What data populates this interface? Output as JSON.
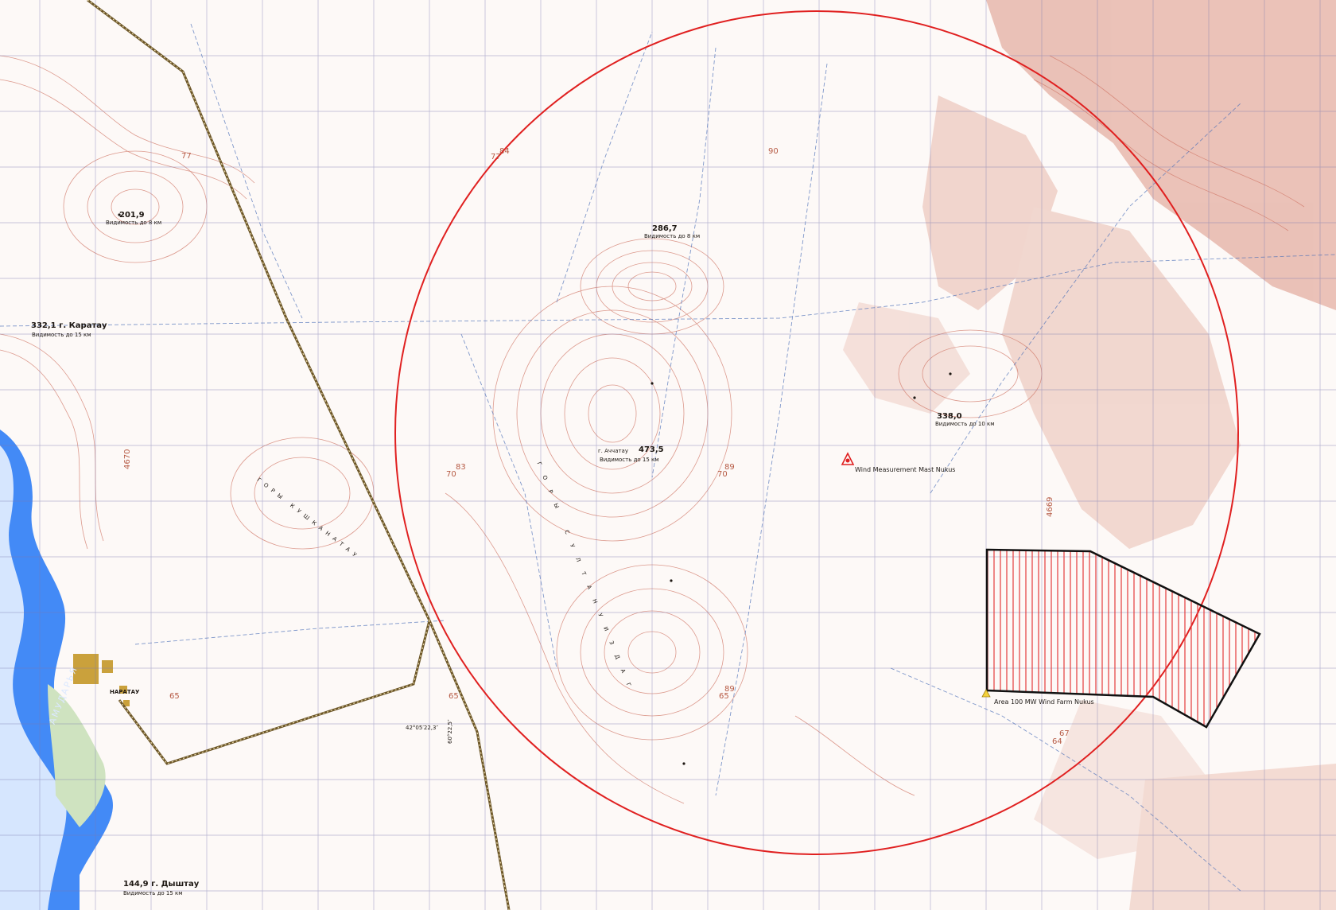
{
  "map": {
    "overlays": {
      "wind_mast_label": "Wind Measurement Mast Nukus",
      "wind_farm_label": "Area 100 MW Wind Farm Nukus"
    },
    "colors": {
      "circle": "#e02020",
      "wind_farm_outline": "#111111",
      "wind_farm_hatch": "#e33a3a",
      "river": "#2f7df5",
      "contour": "#d17a6a",
      "grid": "#7a7ab0",
      "road": "#6c5628"
    },
    "peaks": {
      "karatau": "332,1 г. Каратау",
      "karatau_vis": "Видимость до 15 км",
      "achatau_name": "г. Аччатау",
      "achatau_height": "473,5",
      "achatau_vis": "Видимость до 15 км",
      "p2869": "286,7",
      "p2869_vis": "Видимость до 8 км",
      "p2019": "201,9",
      "p2019_vis": "Видимость до 8 км",
      "p3380": "338,0",
      "p3380_vis": "Видимость до 10 км",
      "dyshtau": "144,9 г. Дыштау",
      "dyshtau_vis": "Видимость до 15 км"
    },
    "places": {
      "karatau_town": "НАРАТАУ",
      "amudarya": "АМУДАРЬЯ",
      "kushkanatau": "ГОРЫ КУШКАНАТАУ",
      "sultanuizdag": "ГОРЫ СУЛТАНУИЗДАГ"
    },
    "numbers": {
      "n4670": "4670",
      "n4669": "4669",
      "n77a": "77",
      "n77b": "77",
      "n84": "84",
      "n90": "90",
      "n70a": "70",
      "n83": "83",
      "n70b": "70",
      "n89a": "89",
      "n65a": "65",
      "n65b": "65",
      "n65c": "65",
      "n89b": "89",
      "n67": "67",
      "n64": "64",
      "lat": "42°05′22,3″",
      "lon": "60°22,5″"
    }
  }
}
